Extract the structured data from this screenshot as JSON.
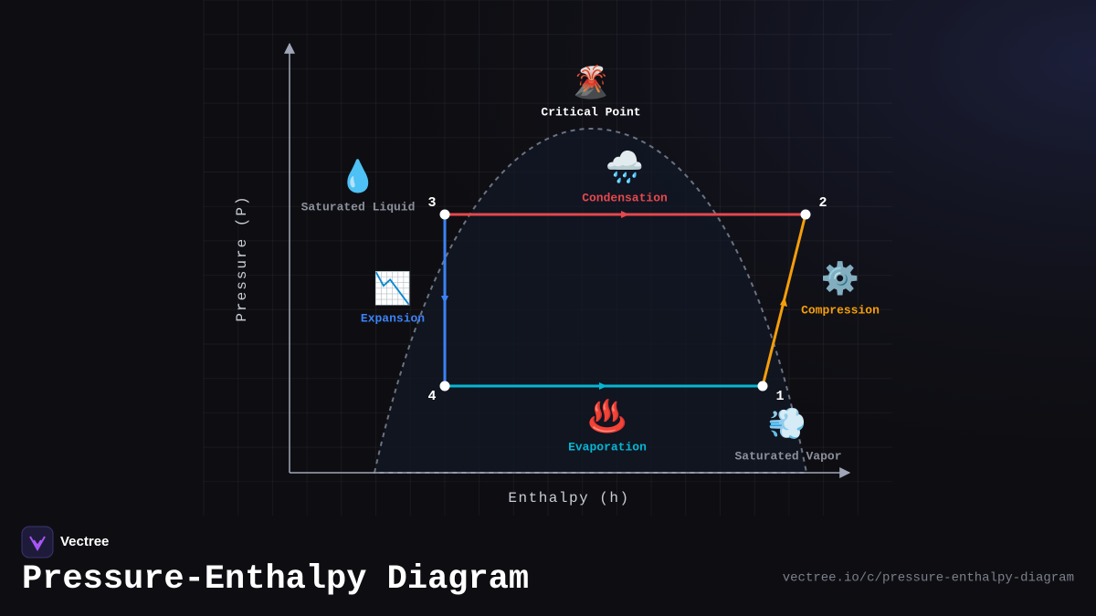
{
  "brand": "Vectree",
  "title": "Pressure-Enthalpy Diagram",
  "url": "vectree.io/c/pressure-enthalpy-diagram",
  "axes": {
    "x": "Enthalpy (h)",
    "y": "Pressure (P)"
  },
  "points": [
    "1",
    "2",
    "3",
    "4"
  ],
  "annotations": [
    {
      "icon": "🌋",
      "text": "Critical Point"
    },
    {
      "icon": "🌧️",
      "text": "Condensation"
    },
    {
      "icon": "💧",
      "text": "Saturated Liquid"
    },
    {
      "icon": "📉",
      "text": "Expansion"
    },
    {
      "icon": "⚙️",
      "text": "Compression"
    },
    {
      "icon": "♨️",
      "text": "Evaporation"
    },
    {
      "icon": "💨",
      "text": "Saturated Vapor"
    }
  ]
}
